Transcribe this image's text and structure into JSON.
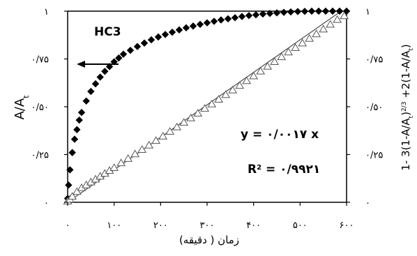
{
  "chart_data": {
    "type": "scatter",
    "series_label": "HC3",
    "xlabel": "زمان ( دقیقه)",
    "ylabel_left": "A/A",
    "ylabel_left_sub": "t",
    "ylabel_right_parts": {
      "a": "1- 3(1-A/A",
      "a_sub": "t",
      "b": ")",
      "b_sup": "2/3",
      "c": " +2(1-A/A",
      "c_sub": "t",
      "d": ")"
    },
    "x_ticks": [
      "۰",
      "۱۰۰",
      "۲۰۰",
      "۳۰۰",
      "۴۰۰",
      "۵۰۰",
      "۶۰۰"
    ],
    "x_tick_values": [
      0,
      100,
      200,
      300,
      400,
      500,
      600
    ],
    "y_ticks_left": [
      "۰",
      "۰/۲۵",
      "۰/۵۰",
      "۰/۷۵",
      "۱"
    ],
    "y_ticks_right": [
      "۰",
      "۰/۲۵",
      "۰/۵۰",
      "۰/۷۵",
      "۱"
    ],
    "y_tick_values": [
      0,
      0.25,
      0.5,
      0.75,
      1
    ],
    "xlim": [
      0,
      600
    ],
    "ylim": [
      0,
      1
    ],
    "equation": "y = ۰/۰۰۱۷ x",
    "r2_label": "R",
    "r2_sup": "2",
    "r2_value": " = ۰/۹۹۲۱",
    "fit_line": {
      "slope": 0.0017
    },
    "series": [
      {
        "marker": "filled-diamond",
        "axis": "left",
        "x": [
          0,
          2,
          5,
          10,
          15,
          20,
          25,
          30,
          40,
          50,
          60,
          70,
          80,
          90,
          100,
          110,
          120,
          135,
          150,
          165,
          180,
          195,
          210,
          225,
          240,
          255,
          270,
          285,
          300,
          315,
          330,
          345,
          360,
          375,
          390,
          405,
          420,
          435,
          450,
          465,
          480,
          495,
          510,
          525,
          540,
          555,
          570,
          585,
          600
        ],
        "y": [
          0.02,
          0.09,
          0.17,
          0.26,
          0.33,
          0.38,
          0.43,
          0.47,
          0.53,
          0.58,
          0.62,
          0.655,
          0.685,
          0.71,
          0.735,
          0.755,
          0.775,
          0.795,
          0.815,
          0.833,
          0.85,
          0.865,
          0.878,
          0.89,
          0.902,
          0.913,
          0.922,
          0.931,
          0.939,
          0.947,
          0.954,
          0.96,
          0.966,
          0.972,
          0.977,
          0.981,
          0.985,
          0.988,
          0.991,
          0.994,
          0.996,
          0.998,
          0.999,
          1.0,
          1.0,
          1.0,
          1.0,
          1.0,
          1.0
        ]
      },
      {
        "marker": "open-triangle",
        "axis": "right",
        "x": [
          0,
          5,
          10,
          20,
          30,
          40,
          50,
          60,
          70,
          80,
          90,
          100,
          115,
          130,
          145,
          160,
          175,
          190,
          205,
          220,
          235,
          250,
          265,
          280,
          295,
          310,
          325,
          340,
          355,
          370,
          385,
          400,
          415,
          430,
          445,
          460,
          475,
          490,
          505,
          520,
          535,
          550,
          565,
          580,
          595
        ],
        "y": [
          0.005,
          0.015,
          0.03,
          0.055,
          0.075,
          0.09,
          0.105,
          0.12,
          0.135,
          0.15,
          0.165,
          0.18,
          0.205,
          0.228,
          0.252,
          0.275,
          0.298,
          0.322,
          0.345,
          0.37,
          0.393,
          0.417,
          0.44,
          0.465,
          0.49,
          0.513,
          0.538,
          0.562,
          0.586,
          0.61,
          0.635,
          0.66,
          0.685,
          0.71,
          0.735,
          0.76,
          0.785,
          0.808,
          0.832,
          0.856,
          0.88,
          0.905,
          0.93,
          0.955,
          0.975
        ]
      }
    ]
  }
}
